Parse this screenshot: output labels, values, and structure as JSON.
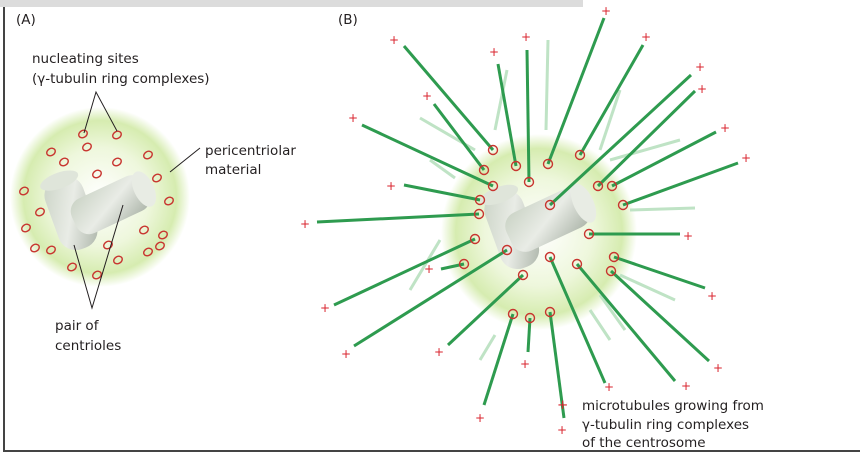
{
  "panel_a": {
    "label": "(A)",
    "nucleating_sites": [
      "nucleating sites",
      "(γ-tubulin ring complexes)"
    ],
    "pericentriolar": [
      "pericentriolar",
      "material"
    ],
    "centrioles": [
      "pair of",
      "centrioles"
    ]
  },
  "panel_b": {
    "label": "(B)",
    "plus_symbol": "+",
    "legend": [
      "microtubules growing from",
      "γ-tubulin ring complexes",
      "of the centrosome"
    ]
  },
  "colors": {
    "microtubule": "#2e9b4f",
    "ring": "#c8342f",
    "plus": "#d9232d",
    "pericentriolar": "#d6ecb0"
  }
}
